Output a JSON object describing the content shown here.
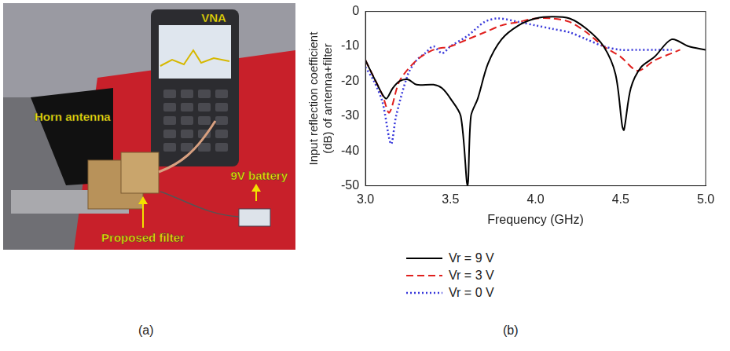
{
  "photo": {
    "panel_label": "(a)",
    "labels": {
      "horn": "Horn antenna",
      "vna": "VNA",
      "battery": "9V battery",
      "filter": "Proposed filter"
    }
  },
  "chart_panel_label": "(b)",
  "chart_data": {
    "type": "line",
    "x_label": "Frequency (GHz)",
    "y_label": [
      "Input reflection coefficient",
      "(dB) of antenna+filter"
    ],
    "xlim": [
      3.0,
      5.0
    ],
    "xticks": [
      {
        "value": 3.0,
        "label": "3.0"
      },
      {
        "value": 3.5,
        "label": "3.5"
      },
      {
        "value": 4.0,
        "label": "4.0"
      },
      {
        "value": 4.5,
        "label": "4.5"
      },
      {
        "value": 5.0,
        "label": "5.0"
      }
    ],
    "ylim": [
      -50,
      0
    ],
    "yticks": [
      -50,
      -40,
      -30,
      -20,
      -10,
      0
    ],
    "grid": false,
    "legend": "bottom",
    "series": [
      {
        "name": "Vr = 9 V",
        "color": "#000000",
        "line_style": "solid",
        "x": [
          3.0,
          3.06,
          3.12,
          3.16,
          3.2,
          3.25,
          3.3,
          3.4,
          3.45,
          3.5,
          3.56,
          3.6,
          3.62,
          3.66,
          3.72,
          3.8,
          3.9,
          4.0,
          4.1,
          4.2,
          4.3,
          4.4,
          4.47,
          4.51,
          4.52,
          4.56,
          4.62,
          4.7,
          4.8,
          4.9,
          5.0
        ],
        "values": [
          -14,
          -20,
          -25,
          -22,
          -20,
          -19.5,
          -21,
          -21,
          -22,
          -25,
          -30,
          -50,
          -30,
          -25,
          -15,
          -8,
          -4,
          -2,
          -1.5,
          -2,
          -5,
          -10,
          -18,
          -33,
          -34,
          -22,
          -16,
          -13,
          -8,
          -10,
          -11
        ]
      },
      {
        "name": "Vr = 3 V",
        "color": "#e0201e",
        "line_style": "dashed",
        "x": [
          3.0,
          3.05,
          3.1,
          3.14,
          3.2,
          3.3,
          3.4,
          3.5,
          3.6,
          3.7,
          3.8,
          3.9,
          4.0,
          4.1,
          4.2,
          4.3,
          4.4,
          4.5,
          4.6,
          4.7,
          4.8,
          4.85
        ],
        "values": [
          -14,
          -19,
          -24,
          -29,
          -20,
          -14,
          -11,
          -10,
          -8,
          -6,
          -4,
          -3,
          -2,
          -2,
          -3,
          -6,
          -10,
          -13,
          -17,
          -14,
          -12,
          -11
        ]
      },
      {
        "name": "Vr = 0 V",
        "color": "#3a3adb",
        "line_style": "dotted",
        "x": [
          3.0,
          3.05,
          3.1,
          3.15,
          3.18,
          3.25,
          3.3,
          3.35,
          3.4,
          3.45,
          3.5,
          3.6,
          3.7,
          3.78,
          3.9,
          4.0,
          4.1,
          4.2,
          4.3,
          4.4,
          4.5,
          4.6,
          4.7,
          4.8
        ],
        "values": [
          -16,
          -20,
          -26,
          -38,
          -30,
          -18,
          -14,
          -12,
          -10,
          -12,
          -10,
          -7,
          -3,
          -2,
          -3,
          -4,
          -5,
          -6,
          -8,
          -10,
          -11,
          -11,
          -11,
          -11
        ]
      }
    ]
  }
}
